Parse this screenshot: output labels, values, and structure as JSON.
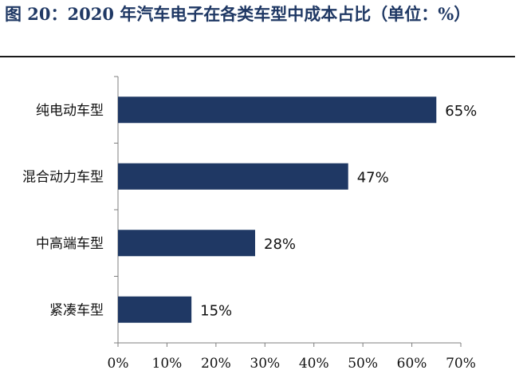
{
  "title": "图 20：2020 年汽车电子在各类车型中成本占比（单位：%）",
  "chart_data": {
    "type": "bar",
    "orientation": "horizontal",
    "categories": [
      "纯电动车型",
      "混合动力车型",
      "中高端车型",
      "紧凑车型"
    ],
    "values": [
      65,
      47,
      28,
      15
    ],
    "value_labels": [
      "65%",
      "47%",
      "28%",
      "15%"
    ],
    "xticks": [
      "0%",
      "10%",
      "20%",
      "30%",
      "40%",
      "50%",
      "60%",
      "70%"
    ],
    "xlim": [
      0,
      70
    ],
    "grid": false,
    "bar_color": "#1f3864"
  }
}
